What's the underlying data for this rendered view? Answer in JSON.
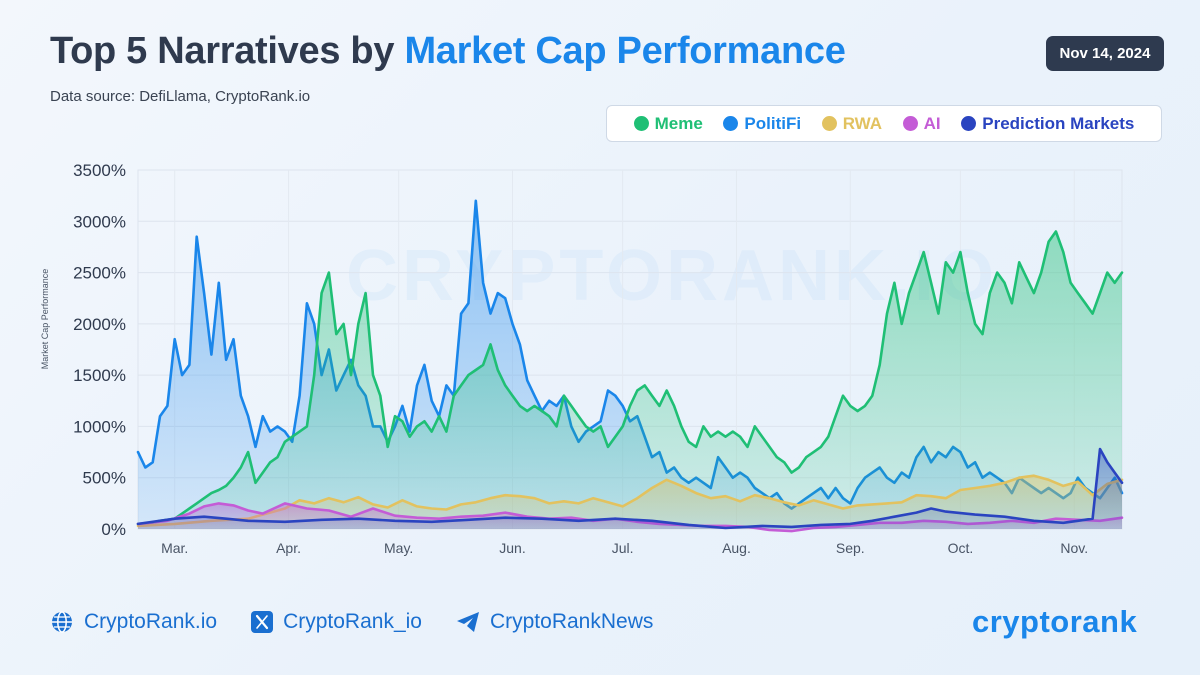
{
  "header": {
    "title_part1": "Top 5 Narratives by",
    "title_part2": "Market Cap Performance",
    "source": "Data source: DefiLlama, CryptoRank.io",
    "date": "Nov 14, 2024"
  },
  "watermark": "CRYPTORANK.IO",
  "footer": {
    "website": "CryptoRank.io",
    "x_handle": "CryptoRank_io",
    "telegram": "CryptoRankNews",
    "logo": "cryptorank"
  },
  "colors": {
    "accent": "#1a86ea",
    "meme": "#1fbf75",
    "politifi": "#1a86ea",
    "rwa": "#e2c25f",
    "ai": "#c45cd6",
    "prediction": "#2a44c0"
  },
  "chart_data": {
    "type": "area",
    "ylabel": "Market Cap Performance",
    "ylim": [
      0,
      3500
    ],
    "yticks": [
      0,
      500,
      1000,
      1500,
      2000,
      2500,
      3000,
      3500
    ],
    "ytick_labels": [
      "0%",
      "500%",
      "1000%",
      "1500%",
      "2000%",
      "2500%",
      "3000%",
      "3500%"
    ],
    "x_labels": [
      "Mar.",
      "Apr.",
      "May.",
      "Jun.",
      "Jul.",
      "Aug.",
      "Sep.",
      "Oct.",
      "Nov."
    ],
    "x_label_positions": [
      10,
      41,
      71,
      102,
      132,
      163,
      194,
      224,
      255
    ],
    "xlim": [
      0,
      268
    ],
    "grid": true,
    "legend": [
      "Meme",
      "PolitiFi",
      "RWA",
      "AI",
      "Prediction Markets"
    ],
    "series": [
      {
        "name": "PolitiFi",
        "color": "#1a86ea",
        "x": [
          0,
          2,
          4,
          6,
          8,
          10,
          12,
          14,
          16,
          18,
          20,
          22,
          24,
          26,
          28,
          30,
          32,
          34,
          36,
          38,
          40,
          42,
          44,
          46,
          48,
          50,
          52,
          54,
          56,
          58,
          60,
          62,
          64,
          66,
          68,
          70,
          72,
          74,
          76,
          78,
          80,
          82,
          84,
          86,
          88,
          90,
          92,
          94,
          96,
          98,
          100,
          102,
          104,
          106,
          108,
          110,
          112,
          114,
          116,
          118,
          120,
          122,
          124,
          126,
          128,
          130,
          132,
          134,
          136,
          138,
          140,
          142,
          144,
          146,
          148,
          150,
          152,
          154,
          156,
          158,
          160,
          162,
          164,
          166,
          168,
          170,
          172,
          174,
          176,
          178,
          180,
          182,
          184,
          186,
          188,
          190,
          192,
          194,
          196,
          198,
          200,
          202,
          204,
          206,
          208,
          210,
          212,
          214,
          216,
          218,
          220,
          222,
          224,
          226,
          228,
          230,
          232,
          234,
          236,
          238,
          240,
          242,
          244,
          246,
          248,
          250,
          252,
          254,
          256,
          258,
          260,
          262,
          264,
          266,
          268
        ],
        "values": [
          750,
          600,
          650,
          1100,
          1200,
          1850,
          1500,
          1600,
          2850,
          2300,
          1700,
          2400,
          1650,
          1850,
          1300,
          1100,
          800,
          1100,
          950,
          1000,
          950,
          850,
          1300,
          2200,
          2000,
          1500,
          1750,
          1350,
          1500,
          1650,
          1400,
          1300,
          1000,
          1000,
          850,
          1000,
          1200,
          950,
          1400,
          1600,
          1250,
          1100,
          1400,
          1300,
          2100,
          2200,
          3200,
          2400,
          2100,
          2300,
          2250,
          2000,
          1800,
          1450,
          1300,
          1150,
          1250,
          1200,
          1300,
          1000,
          850,
          950,
          1000,
          1050,
          1350,
          1300,
          1200,
          1050,
          1100,
          900,
          700,
          750,
          550,
          600,
          500,
          450,
          500,
          450,
          400,
          700,
          600,
          500,
          550,
          500,
          400,
          350,
          300,
          350,
          250,
          200,
          250,
          300,
          350,
          400,
          300,
          400,
          300,
          250,
          400,
          500,
          550,
          600,
          500,
          450,
          550,
          500,
          700,
          800,
          650,
          750,
          700,
          800,
          750,
          600,
          650,
          500,
          550,
          500,
          450,
          350,
          500,
          450,
          400,
          350,
          400,
          350,
          300,
          350,
          500,
          400,
          350,
          300,
          400,
          500,
          350
        ]
      },
      {
        "name": "Meme",
        "color": "#1fbf75",
        "x": [
          0,
          2,
          4,
          6,
          8,
          10,
          12,
          14,
          16,
          18,
          20,
          22,
          24,
          26,
          28,
          30,
          32,
          34,
          36,
          38,
          40,
          42,
          44,
          46,
          48,
          50,
          52,
          54,
          56,
          58,
          60,
          62,
          64,
          66,
          68,
          70,
          72,
          74,
          76,
          78,
          80,
          82,
          84,
          86,
          88,
          90,
          92,
          94,
          96,
          98,
          100,
          102,
          104,
          106,
          108,
          110,
          112,
          114,
          116,
          118,
          120,
          122,
          124,
          126,
          128,
          130,
          132,
          134,
          136,
          138,
          140,
          142,
          144,
          146,
          148,
          150,
          152,
          154,
          156,
          158,
          160,
          162,
          164,
          166,
          168,
          170,
          172,
          174,
          176,
          178,
          180,
          182,
          184,
          186,
          188,
          190,
          192,
          194,
          196,
          198,
          200,
          202,
          204,
          206,
          208,
          210,
          212,
          214,
          216,
          218,
          220,
          222,
          224,
          226,
          228,
          230,
          232,
          234,
          236,
          238,
          240,
          242,
          244,
          246,
          248,
          250,
          252,
          254,
          256,
          258,
          260,
          262,
          264,
          266,
          268
        ],
        "values": [
          50,
          50,
          60,
          80,
          90,
          100,
          150,
          200,
          250,
          300,
          350,
          380,
          420,
          500,
          600,
          750,
          450,
          550,
          650,
          700,
          850,
          900,
          950,
          1000,
          1500,
          2300,
          2500,
          1900,
          2000,
          1500,
          2000,
          2300,
          1500,
          1300,
          800,
          1100,
          1050,
          900,
          1000,
          1050,
          950,
          1100,
          950,
          1300,
          1400,
          1500,
          1550,
          1600,
          1800,
          1550,
          1400,
          1300,
          1200,
          1150,
          1200,
          1150,
          1100,
          1000,
          1300,
          1200,
          1100,
          1000,
          950,
          1000,
          800,
          900,
          1000,
          1200,
          1350,
          1400,
          1300,
          1200,
          1350,
          1200,
          1000,
          850,
          800,
          1000,
          900,
          950,
          900,
          950,
          900,
          800,
          1000,
          900,
          800,
          700,
          650,
          550,
          600,
          700,
          750,
          800,
          900,
          1100,
          1300,
          1200,
          1150,
          1200,
          1300,
          1600,
          2100,
          2400,
          2000,
          2300,
          2500,
          2700,
          2400,
          2100,
          2600,
          2500,
          2700,
          2300,
          2000,
          1900,
          2300,
          2500,
          2400,
          2200,
          2600,
          2450,
          2300,
          2500,
          2800,
          2900,
          2700,
          2400,
          2300,
          2200,
          2100,
          2300,
          2500,
          2400,
          2500
        ]
      },
      {
        "name": "RWA",
        "color": "#e2c25f",
        "x": [
          0,
          10,
          20,
          30,
          40,
          44,
          48,
          52,
          56,
          60,
          64,
          68,
          72,
          76,
          80,
          84,
          88,
          92,
          96,
          100,
          104,
          108,
          112,
          116,
          120,
          124,
          128,
          132,
          136,
          140,
          144,
          148,
          152,
          156,
          160,
          164,
          168,
          172,
          176,
          180,
          184,
          188,
          192,
          196,
          200,
          204,
          208,
          212,
          216,
          220,
          224,
          228,
          232,
          236,
          240,
          244,
          248,
          252,
          256,
          260,
          264,
          268
        ],
        "values": [
          30,
          50,
          80,
          100,
          200,
          280,
          250,
          300,
          260,
          310,
          240,
          210,
          280,
          220,
          200,
          190,
          240,
          260,
          300,
          330,
          320,
          300,
          250,
          270,
          250,
          300,
          260,
          220,
          300,
          400,
          480,
          420,
          350,
          300,
          320,
          270,
          330,
          300,
          260,
          230,
          280,
          240,
          200,
          230,
          240,
          250,
          260,
          330,
          320,
          300,
          380,
          400,
          420,
          450,
          500,
          520,
          480,
          420,
          460,
          330,
          440,
          480
        ]
      },
      {
        "name": "AI",
        "color": "#c45cd6",
        "x": [
          0,
          8,
          14,
          18,
          22,
          26,
          30,
          34,
          40,
          46,
          52,
          58,
          64,
          70,
          76,
          82,
          88,
          94,
          100,
          106,
          112,
          118,
          124,
          130,
          136,
          142,
          148,
          154,
          160,
          166,
          172,
          178,
          184,
          190,
          196,
          202,
          208,
          214,
          220,
          226,
          232,
          238,
          244,
          250,
          256,
          262,
          268
        ],
        "values": [
          50,
          80,
          150,
          220,
          250,
          230,
          180,
          150,
          250,
          200,
          180,
          120,
          200,
          130,
          110,
          100,
          120,
          130,
          160,
          120,
          100,
          110,
          80,
          100,
          70,
          50,
          40,
          30,
          30,
          20,
          -10,
          -20,
          10,
          20,
          40,
          60,
          60,
          80,
          70,
          50,
          60,
          80,
          60,
          100,
          90,
          80,
          110
        ]
      },
      {
        "name": "Prediction Markets",
        "color": "#2a44c0",
        "x": [
          0,
          10,
          18,
          24,
          30,
          40,
          50,
          60,
          70,
          80,
          90,
          100,
          110,
          120,
          130,
          140,
          150,
          160,
          170,
          178,
          186,
          194,
          200,
          206,
          212,
          216,
          220,
          228,
          236,
          244,
          252,
          256,
          260,
          262,
          264,
          266,
          268
        ],
        "values": [
          50,
          100,
          120,
          100,
          80,
          70,
          90,
          100,
          80,
          70,
          90,
          110,
          100,
          80,
          100,
          80,
          40,
          10,
          30,
          20,
          40,
          50,
          80,
          120,
          160,
          200,
          170,
          140,
          120,
          80,
          60,
          80,
          100,
          780,
          650,
          550,
          450
        ]
      }
    ]
  }
}
